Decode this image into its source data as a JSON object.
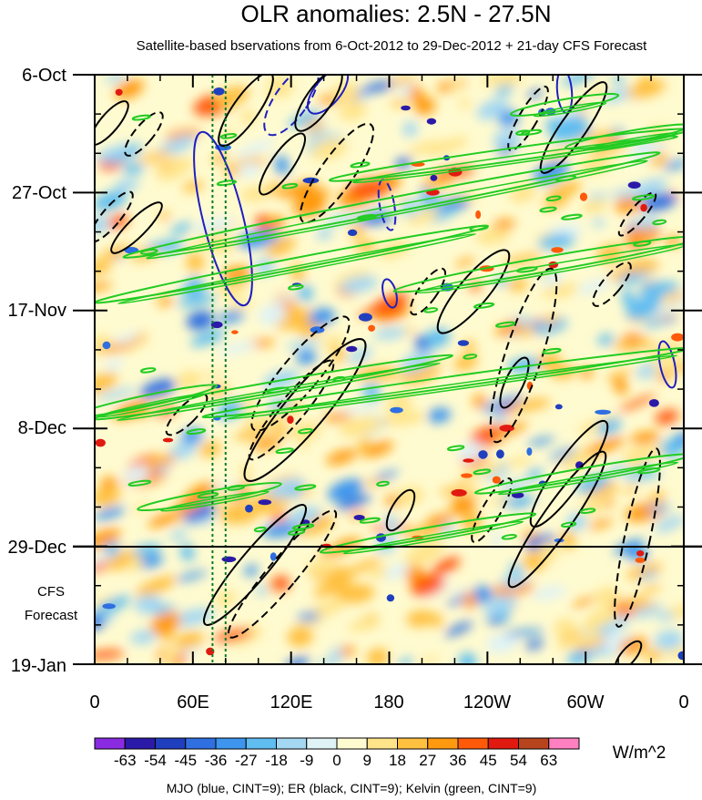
{
  "chart_data": {
    "type": "heatmap",
    "title": "OLR anomalies: 2.5N - 27.5N",
    "subtitle": "Satellite-based bservations from 6-Oct-2012 to 29-Dec-2012 + 21-day CFS Forecast",
    "x_ticks": [
      "0",
      "60E",
      "120E",
      "180",
      "120W",
      "60W",
      "0"
    ],
    "x_range_deg_east": [
      0,
      360
    ],
    "y_ticks": [
      "6-Oct",
      "27-Oct",
      "17-Nov",
      "8-Dec",
      "29-Dec",
      "19-Jan"
    ],
    "y_range_days": [
      0,
      105
    ],
    "observation_end_label": "29-Dec",
    "forecast_label_line1": "CFS",
    "forecast_label_line2": "Forecast",
    "colorbar": {
      "levels": [
        "-63",
        "-54",
        "-45",
        "-36",
        "-27",
        "-18",
        "-9",
        "0",
        "9",
        "18",
        "27",
        "36",
        "45",
        "54",
        "63"
      ],
      "colors": [
        "#8a2be2",
        "#2b1aa8",
        "#1f3fbf",
        "#2f6fe0",
        "#3d95ee",
        "#5fbdf0",
        "#a4d7f2",
        "#dff2f5",
        "#fffbd0",
        "#ffe48a",
        "#ffc040",
        "#ff9a10",
        "#ff5a0a",
        "#e01a10",
        "#b8441e",
        "#ff80c0"
      ],
      "units": "W/m^2"
    },
    "contour_legend": "MJO (blue, CINT=9); ER (black, CINT=9); Kelvin (green, CINT=9)",
    "series_colors": {
      "mjo": "#1f1fbf",
      "er": "#000000",
      "kelvin": "#22cc22"
    },
    "reference_lines_lon_deg": [
      72,
      80
    ]
  }
}
